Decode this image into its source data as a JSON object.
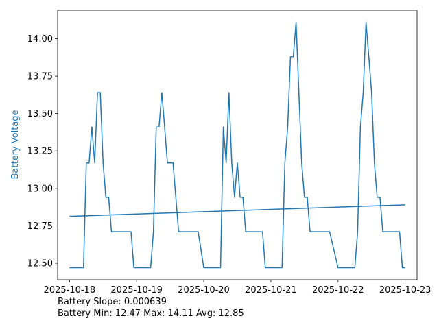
{
  "chart_data": {
    "type": "line",
    "title": "",
    "xlabel": "",
    "ylabel": "Battery Voltage",
    "colors": {
      "series": "#1f77b4",
      "ylabel": "#1f77b4"
    },
    "x_tick_labels": [
      "2025-10-18",
      "2025-10-19",
      "2025-10-20",
      "2025-10-21",
      "2025-10-22",
      "2025-10-23"
    ],
    "y_ticks": [
      12.5,
      12.75,
      13.0,
      13.25,
      13.5,
      13.75,
      14.0
    ],
    "y_tick_labels": [
      "12.50",
      "12.75",
      "13.00",
      "13.25",
      "13.50",
      "13.75",
      "14.00"
    ],
    "xlim": [
      "2025-10-17T19:45",
      "2025-10-23T04:15"
    ],
    "ylim": [
      12.39,
      14.19
    ],
    "grid": false,
    "legend": "none",
    "series": [
      {
        "name": "",
        "kind": "voltage",
        "points": [
          [
            "2025-10-18T00:00",
            12.47
          ],
          [
            "2025-10-18T05:00",
            12.47
          ],
          [
            "2025-10-18T06:00",
            13.17
          ],
          [
            "2025-10-18T07:00",
            13.17
          ],
          [
            "2025-10-18T08:00",
            13.41
          ],
          [
            "2025-10-18T09:00",
            13.17
          ],
          [
            "2025-10-18T10:00",
            13.64
          ],
          [
            "2025-10-18T11:00",
            13.64
          ],
          [
            "2025-10-18T12:00",
            13.17
          ],
          [
            "2025-10-18T13:00",
            12.94
          ],
          [
            "2025-10-18T14:00",
            12.94
          ],
          [
            "2025-10-18T15:00",
            12.71
          ],
          [
            "2025-10-18T21:00",
            12.71
          ],
          [
            "2025-10-18T22:00",
            12.71
          ],
          [
            "2025-10-18T23:00",
            12.47
          ],
          [
            "2025-10-19T05:00",
            12.47
          ],
          [
            "2025-10-19T06:00",
            12.71
          ],
          [
            "2025-10-19T07:00",
            13.41
          ],
          [
            "2025-10-19T08:00",
            13.41
          ],
          [
            "2025-10-19T09:00",
            13.64
          ],
          [
            "2025-10-19T10:00",
            13.41
          ],
          [
            "2025-10-19T11:00",
            13.17
          ],
          [
            "2025-10-19T13:00",
            13.17
          ],
          [
            "2025-10-19T14:00",
            12.94
          ],
          [
            "2025-10-19T15:00",
            12.71
          ],
          [
            "2025-10-19T22:00",
            12.71
          ],
          [
            "2025-10-20T00:00",
            12.47
          ],
          [
            "2025-10-20T06:00",
            12.47
          ],
          [
            "2025-10-20T07:00",
            13.41
          ],
          [
            "2025-10-20T08:00",
            13.17
          ],
          [
            "2025-10-20T09:00",
            13.64
          ],
          [
            "2025-10-20T10:00",
            13.17
          ],
          [
            "2025-10-20T11:00",
            12.94
          ],
          [
            "2025-10-20T12:00",
            13.17
          ],
          [
            "2025-10-20T13:00",
            12.94
          ],
          [
            "2025-10-20T14:00",
            12.94
          ],
          [
            "2025-10-20T15:00",
            12.71
          ],
          [
            "2025-10-20T21:00",
            12.71
          ],
          [
            "2025-10-20T22:00",
            12.47
          ],
          [
            "2025-10-21T04:00",
            12.47
          ],
          [
            "2025-10-21T05:00",
            13.17
          ],
          [
            "2025-10-21T06:00",
            13.41
          ],
          [
            "2025-10-21T07:00",
            13.88
          ],
          [
            "2025-10-21T08:00",
            13.88
          ],
          [
            "2025-10-21T09:00",
            14.11
          ],
          [
            "2025-10-21T10:00",
            13.64
          ],
          [
            "2025-10-21T11:00",
            13.17
          ],
          [
            "2025-10-21T12:00",
            12.94
          ],
          [
            "2025-10-21T13:00",
            12.94
          ],
          [
            "2025-10-21T14:00",
            12.71
          ],
          [
            "2025-10-21T21:00",
            12.71
          ],
          [
            "2025-10-22T00:00",
            12.47
          ],
          [
            "2025-10-22T06:00",
            12.47
          ],
          [
            "2025-10-22T07:00",
            12.71
          ],
          [
            "2025-10-22T08:00",
            13.41
          ],
          [
            "2025-10-22T09:00",
            13.64
          ],
          [
            "2025-10-22T10:00",
            14.11
          ],
          [
            "2025-10-22T11:00",
            13.88
          ],
          [
            "2025-10-22T12:00",
            13.64
          ],
          [
            "2025-10-22T13:00",
            13.17
          ],
          [
            "2025-10-22T14:00",
            12.94
          ],
          [
            "2025-10-22T15:00",
            12.94
          ],
          [
            "2025-10-22T16:00",
            12.71
          ],
          [
            "2025-10-22T21:00",
            12.71
          ],
          [
            "2025-10-22T22:00",
            12.71
          ],
          [
            "2025-10-22T23:00",
            12.47
          ],
          [
            "2025-10-23T00:00",
            12.47
          ]
        ]
      },
      {
        "name": "",
        "kind": "trend",
        "points": [
          [
            "2025-10-18T00:00",
            12.813
          ],
          [
            "2025-10-23T00:00",
            12.89
          ]
        ]
      }
    ]
  },
  "stats": {
    "slope_text": "Battery Slope: 0.000639",
    "minmax_text": "Battery Min: 12.47 Max: 14.11 Avg: 12.85"
  }
}
